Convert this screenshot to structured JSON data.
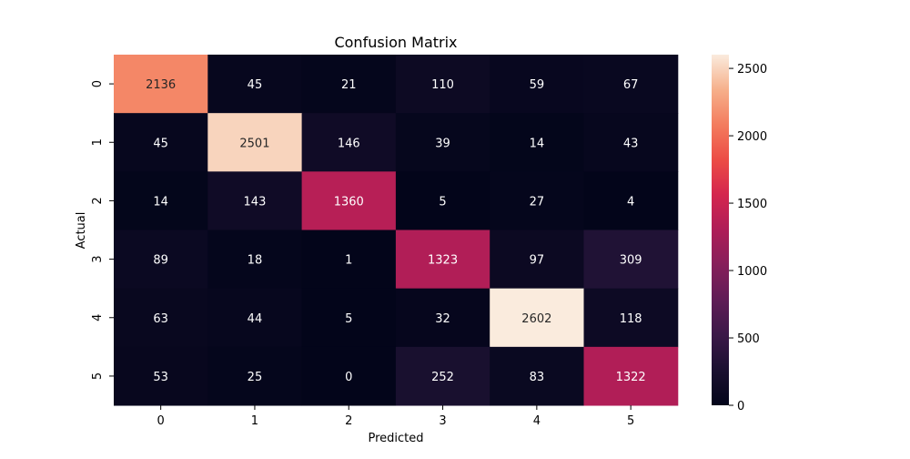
{
  "chart_data": {
    "type": "heatmap",
    "title": "Confusion Matrix",
    "xlabel": "Predicted",
    "ylabel": "Actual",
    "x_categories": [
      "0",
      "1",
      "2",
      "3",
      "4",
      "5"
    ],
    "y_categories": [
      "0",
      "1",
      "2",
      "3",
      "4",
      "5"
    ],
    "values": [
      [
        2136,
        45,
        21,
        110,
        59,
        67
      ],
      [
        45,
        2501,
        146,
        39,
        14,
        43
      ],
      [
        14,
        143,
        1360,
        5,
        27,
        4
      ],
      [
        89,
        18,
        1,
        1323,
        97,
        309
      ],
      [
        63,
        44,
        5,
        32,
        2602,
        118
      ],
      [
        53,
        25,
        0,
        252,
        83,
        1322
      ]
    ],
    "colorbar": {
      "min": 0,
      "max": 2602,
      "ticks": [
        0,
        500,
        1000,
        1500,
        2000,
        2500
      ],
      "colormap": "rocket"
    }
  }
}
